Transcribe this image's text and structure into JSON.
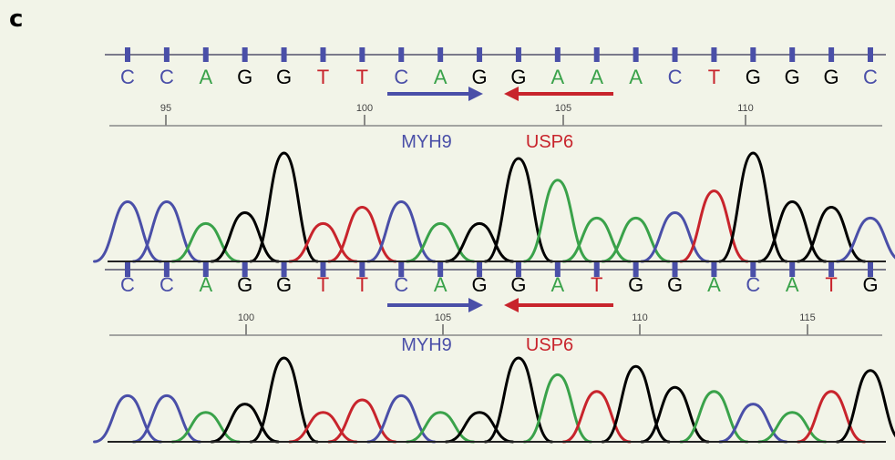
{
  "panel_label": "c",
  "colors": {
    "A": "#3aa24a",
    "C": "#4a4fa8",
    "G": "#000000",
    "T": "#c8242c",
    "arrow_myh9": "#4a4fa8",
    "arrow_usp6": "#c8242c",
    "tick": "#4a4fa8",
    "axis": "#888888"
  },
  "tracks": [
    {
      "bases": [
        "C",
        "C",
        "A",
        "G",
        "G",
        "T",
        "T",
        "C",
        "A",
        "G",
        "G",
        "A",
        "A",
        "A",
        "C",
        "T",
        "G",
        "G",
        "G",
        "C"
      ],
      "positions": [
        "95",
        "100",
        "105",
        "110"
      ],
      "fusion_labels": {
        "left": "MYH9",
        "right": "USP6"
      },
      "peak_heights": [
        0.55,
        0.55,
        0.35,
        0.45,
        1.0,
        0.35,
        0.5,
        0.55,
        0.35,
        0.35,
        0.95,
        0.75,
        0.4,
        0.4,
        0.45,
        0.65,
        1.0,
        0.55,
        0.5,
        0.4
      ]
    },
    {
      "bases": [
        "C",
        "C",
        "A",
        "G",
        "G",
        "T",
        "T",
        "C",
        "A",
        "G",
        "G",
        "A",
        "T",
        "G",
        "G",
        "A",
        "C",
        "A",
        "T",
        "G"
      ],
      "positions": [
        "100",
        "105",
        "110",
        "115"
      ],
      "fusion_labels": {
        "left": "MYH9",
        "right": "USP6"
      },
      "peak_heights": [
        0.55,
        0.55,
        0.35,
        0.45,
        1.0,
        0.35,
        0.5,
        0.55,
        0.35,
        0.35,
        1.0,
        0.8,
        0.6,
        0.9,
        0.65,
        0.6,
        0.45,
        0.35,
        0.6,
        0.85
      ]
    }
  ]
}
